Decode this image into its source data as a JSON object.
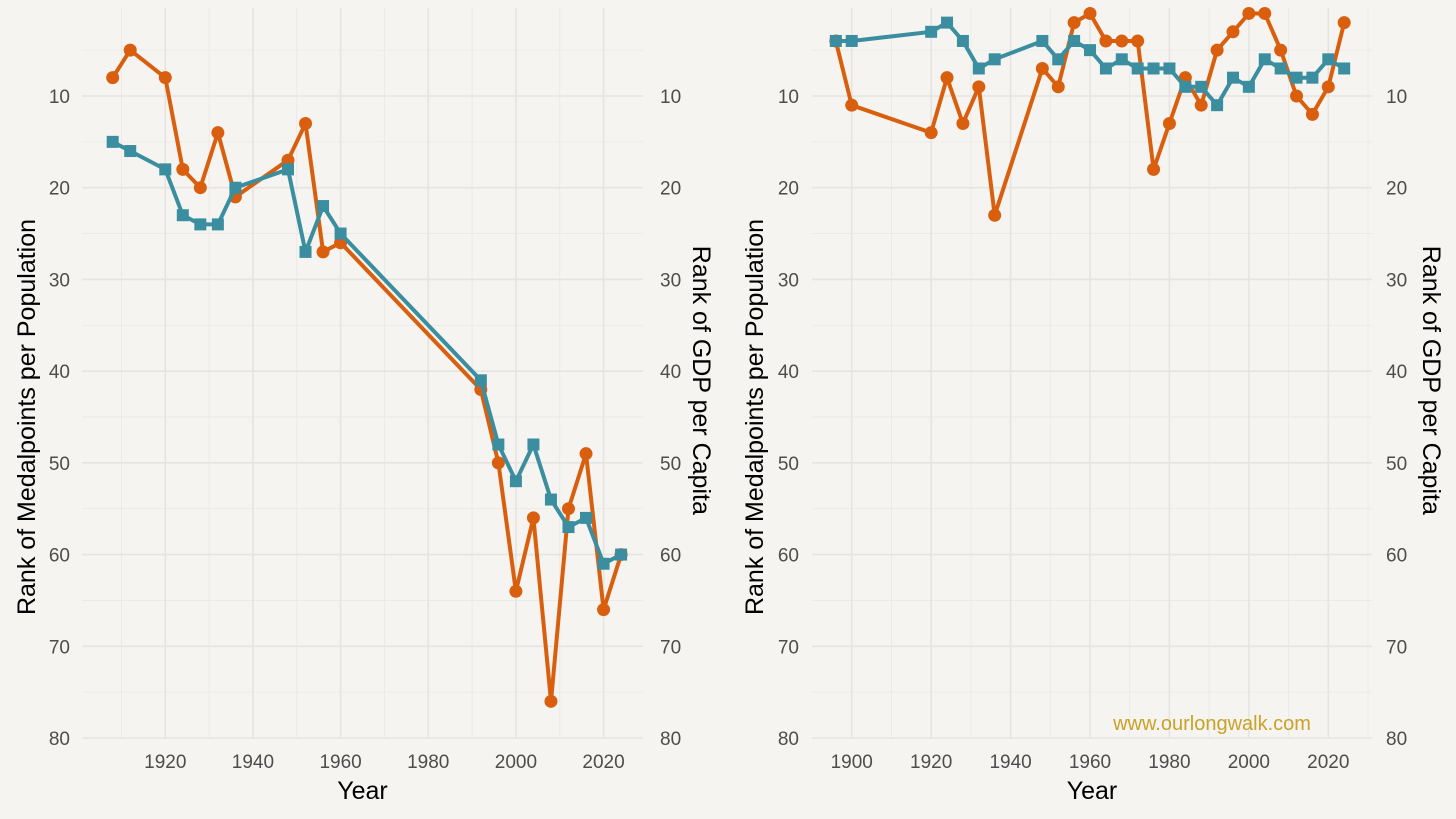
{
  "chart_data": [
    {
      "type": "line",
      "xlabel": "Year",
      "ylabel": "Rank of Medalpoints per Population",
      "y2label": "Rank of GDP per Capita",
      "xlim": [
        1901,
        2029
      ],
      "ylim": [
        80,
        1
      ],
      "y_reversed": true,
      "xticks": [
        1920,
        1940,
        1960,
        1980,
        2000,
        2020
      ],
      "yticks": [
        10,
        20,
        30,
        40,
        50,
        60,
        70,
        80
      ],
      "grid": true,
      "series": [
        {
          "color": "#d95f0e",
          "marker": "circle",
          "x": [
            1908,
            1912,
            1920,
            1924,
            1928,
            1932,
            1936,
            1948,
            1952,
            1956,
            1960,
            1992,
            1996,
            2000,
            2004,
            2008,
            2012,
            2016,
            2020,
            2024
          ],
          "y": [
            8,
            5,
            8,
            18,
            20,
            14,
            21,
            17,
            13,
            27,
            26,
            42,
            50,
            64,
            56,
            76,
            55,
            49,
            66,
            60
          ]
        },
        {
          "color": "#3a8ea0",
          "marker": "square",
          "x": [
            1908,
            1912,
            1920,
            1924,
            1928,
            1932,
            1936,
            1948,
            1952,
            1956,
            1960,
            1992,
            1996,
            2000,
            2004,
            2008,
            2012,
            2016,
            2020,
            2024
          ],
          "y": [
            15,
            16,
            18,
            23,
            24,
            24,
            20,
            18,
            27,
            22,
            25,
            41,
            48,
            52,
            48,
            54,
            57,
            56,
            61,
            60
          ]
        }
      ]
    },
    {
      "type": "line",
      "xlabel": "Year",
      "ylabel": "Rank of Medalpoints per Population",
      "y2label": "Rank of GDP per Capita",
      "xlim": [
        1890,
        2031
      ],
      "ylim": [
        80,
        1
      ],
      "y_reversed": true,
      "xticks": [
        1900,
        1920,
        1940,
        1960,
        1980,
        2000,
        2020
      ],
      "yticks": [
        10,
        20,
        30,
        40,
        50,
        60,
        70,
        80
      ],
      "grid": true,
      "annotation": "www.ourlongwalk.com",
      "annotation_color": "#c9a227",
      "series": [
        {
          "color": "#d95f0e",
          "marker": "circle",
          "x": [
            1896,
            1900,
            1920,
            1924,
            1928,
            1932,
            1936,
            1948,
            1952,
            1956,
            1960,
            1964,
            1968,
            1972,
            1976,
            1980,
            1984,
            1988,
            1992,
            1996,
            2000,
            2004,
            2008,
            2012,
            2016,
            2020,
            2024
          ],
          "y": [
            4,
            11,
            14,
            8,
            13,
            9,
            23,
            7,
            9,
            2,
            1,
            4,
            4,
            4,
            18,
            13,
            8,
            11,
            5,
            3,
            1,
            1,
            5,
            10,
            12,
            9,
            2
          ]
        },
        {
          "color": "#3a8ea0",
          "marker": "square",
          "x": [
            1896,
            1900,
            1920,
            1924,
            1928,
            1932,
            1936,
            1948,
            1952,
            1956,
            1960,
            1964,
            1968,
            1972,
            1976,
            1980,
            1984,
            1988,
            1992,
            1996,
            2000,
            2004,
            2008,
            2012,
            2016,
            2020,
            2024
          ],
          "y": [
            4,
            4,
            3,
            2,
            4,
            7,
            6,
            4,
            6,
            4,
            5,
            7,
            6,
            7,
            7,
            7,
            9,
            9,
            11,
            8,
            9,
            6,
            7,
            8,
            8,
            6,
            7
          ]
        }
      ]
    }
  ]
}
